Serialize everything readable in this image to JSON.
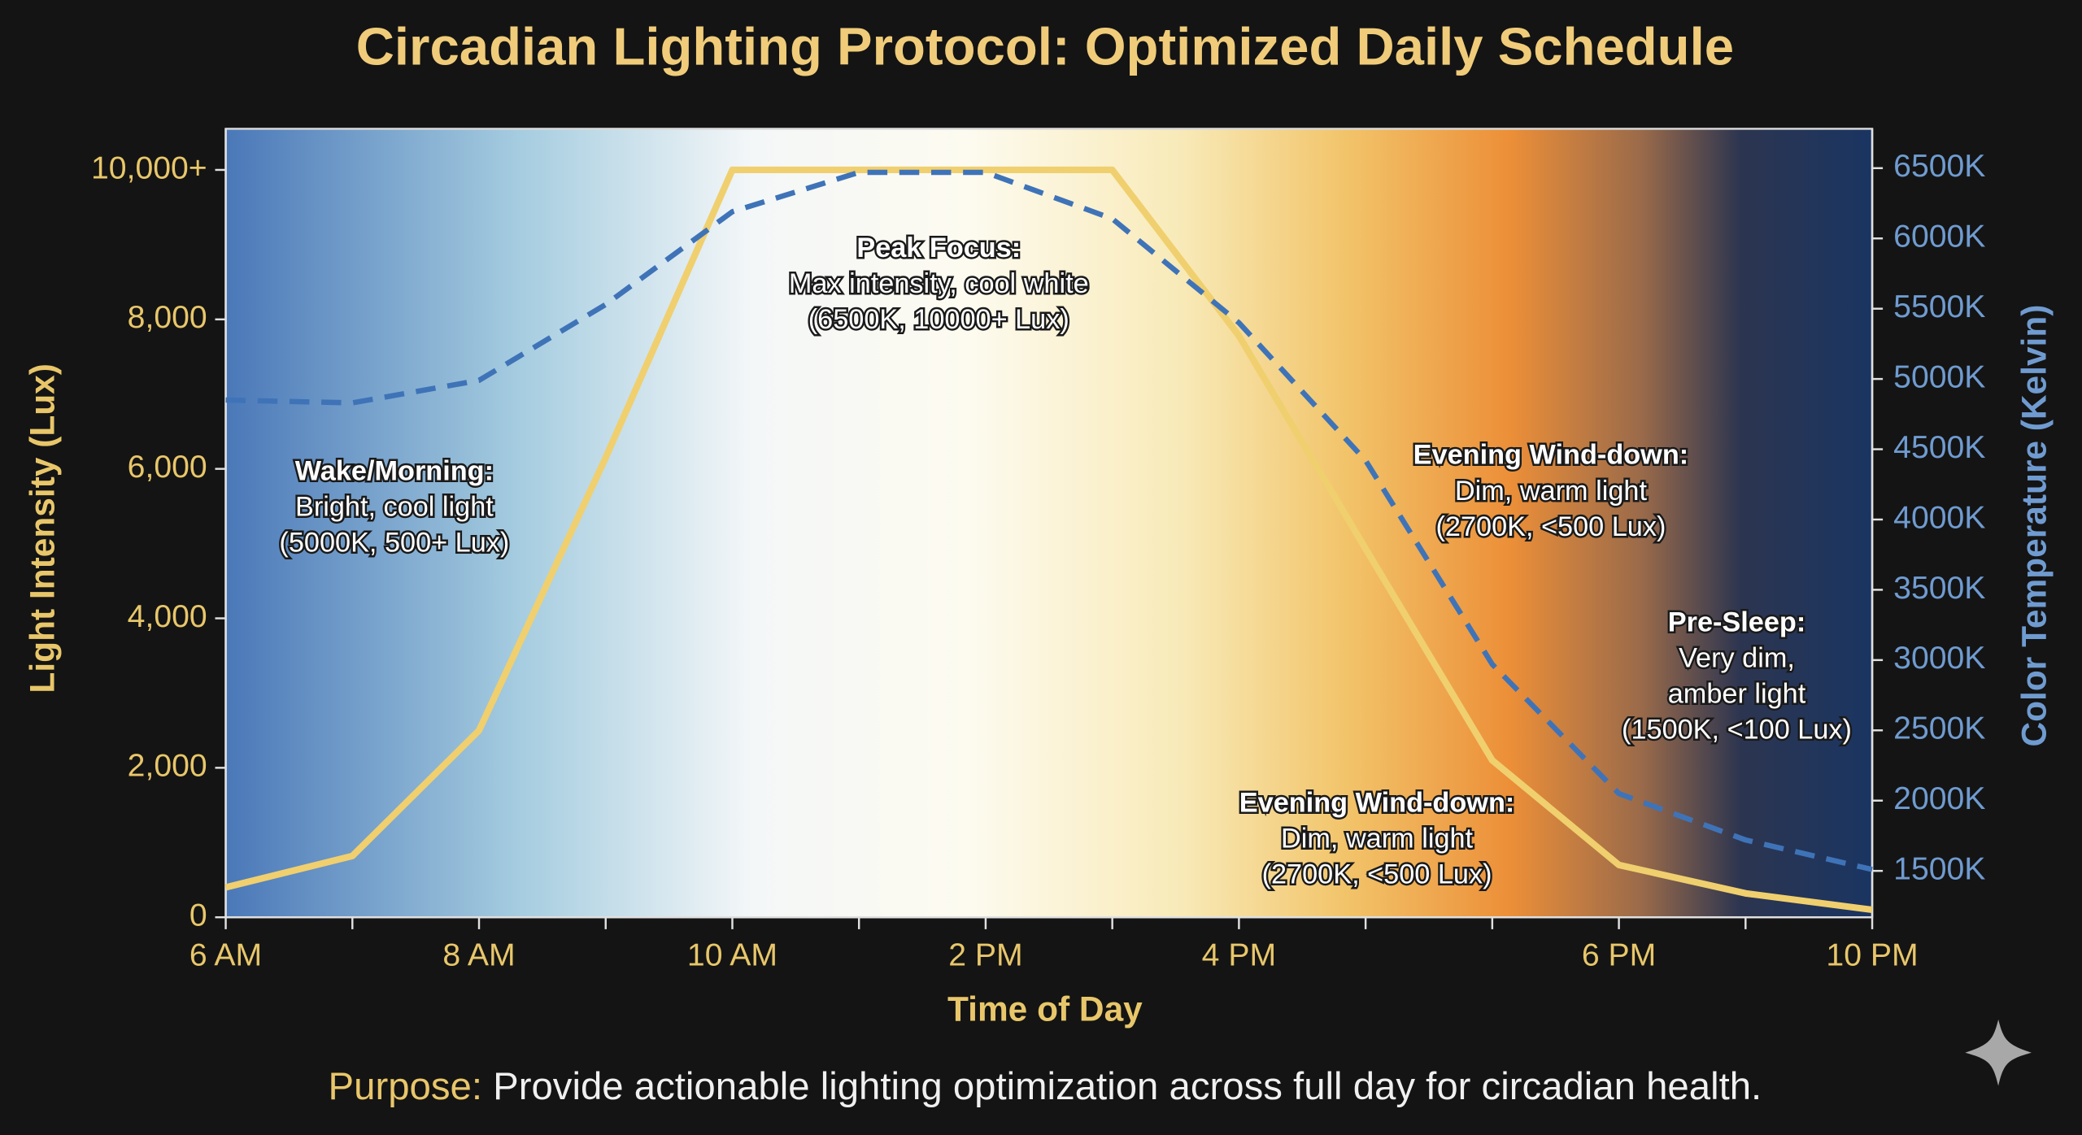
{
  "chart_data": {
    "type": "line",
    "title": "Circadian Lighting Protocol: Optimized Daily Schedule",
    "x_label": "Time of Day",
    "y_label": "Light Intensity (Lux)",
    "y2_label": "Color Temperature (Kelvin)",
    "categories": [
      "6 AM",
      null,
      "8 AM",
      null,
      "10 AM",
      null,
      "2 PM",
      null,
      "4 PM",
      null,
      null,
      "6 PM",
      null,
      "10 PM"
    ],
    "series": [
      {
        "name": "Light Intensity (Lux)",
        "color": "#f0cf6e",
        "axis": "y",
        "values": [
          400,
          820,
          2500,
          6150,
          10000,
          10000,
          10000,
          10000,
          7780,
          4930,
          2100,
          700,
          320,
          100
        ]
      },
      {
        "name": "Color Temperature (Kelvin)",
        "color": "#3f73b8",
        "axis": "y2",
        "values": [
          4850,
          4830,
          4990,
          5530,
          6190,
          6470,
          6470,
          6140,
          5400,
          4420,
          2970,
          2050,
          1720,
          1510
        ]
      }
    ],
    "ylim": [
      0,
      10550
    ],
    "yticks": [
      0,
      {
        "value": 2000,
        "label": "2,000"
      },
      {
        "value": 4000,
        "label": "4,000"
      },
      {
        "value": 6000,
        "label": "6,000"
      },
      {
        "value": 8000,
        "label": "8,000"
      },
      {
        "value": 10000,
        "label": "10,000+"
      }
    ],
    "y2lim": [
      1170,
      6780
    ],
    "y2ticks": [
      {
        "value": 1500,
        "label": "1500K"
      },
      {
        "value": 2000,
        "label": "2000K"
      },
      {
        "value": 2500,
        "label": "2500K"
      },
      {
        "value": 3000,
        "label": "3000K"
      },
      {
        "value": 3500,
        "label": "3500K"
      },
      {
        "value": 4000,
        "label": "4000K"
      },
      {
        "value": 4500,
        "label": "4500K"
      },
      {
        "value": 5000,
        "label": "5000K"
      },
      {
        "value": 5500,
        "label": "5500K"
      },
      {
        "value": 6000,
        "label": "6000K"
      },
      {
        "value": 6500,
        "label": "6500K"
      }
    ],
    "annotations": [
      {
        "title": "Wake/Morning:",
        "lines": [
          "Bright, cool light",
          "(5000K, 500+ Lux)"
        ]
      },
      {
        "title": "Peak Focus:",
        "lines": [
          "Max intensity, cool white",
          "(6500K, 10000+ Lux)"
        ]
      },
      {
        "title": "Evening Wind-down:",
        "lines": [
          "Dim, warm light",
          "(2700K, <500 Lux)"
        ]
      },
      {
        "title": "Evening Wind-down:",
        "lines": [
          "Dim, warm light",
          "(2700K, <500 Lux)"
        ]
      },
      {
        "title": "Pre-Sleep:",
        "lines": [
          "Very dim,",
          "amber light",
          "(1500K, <100 Lux)"
        ]
      }
    ],
    "footer": {
      "label": "Purpose:",
      "text": " Provide actionable lighting optimization across full day for circadian health."
    }
  }
}
